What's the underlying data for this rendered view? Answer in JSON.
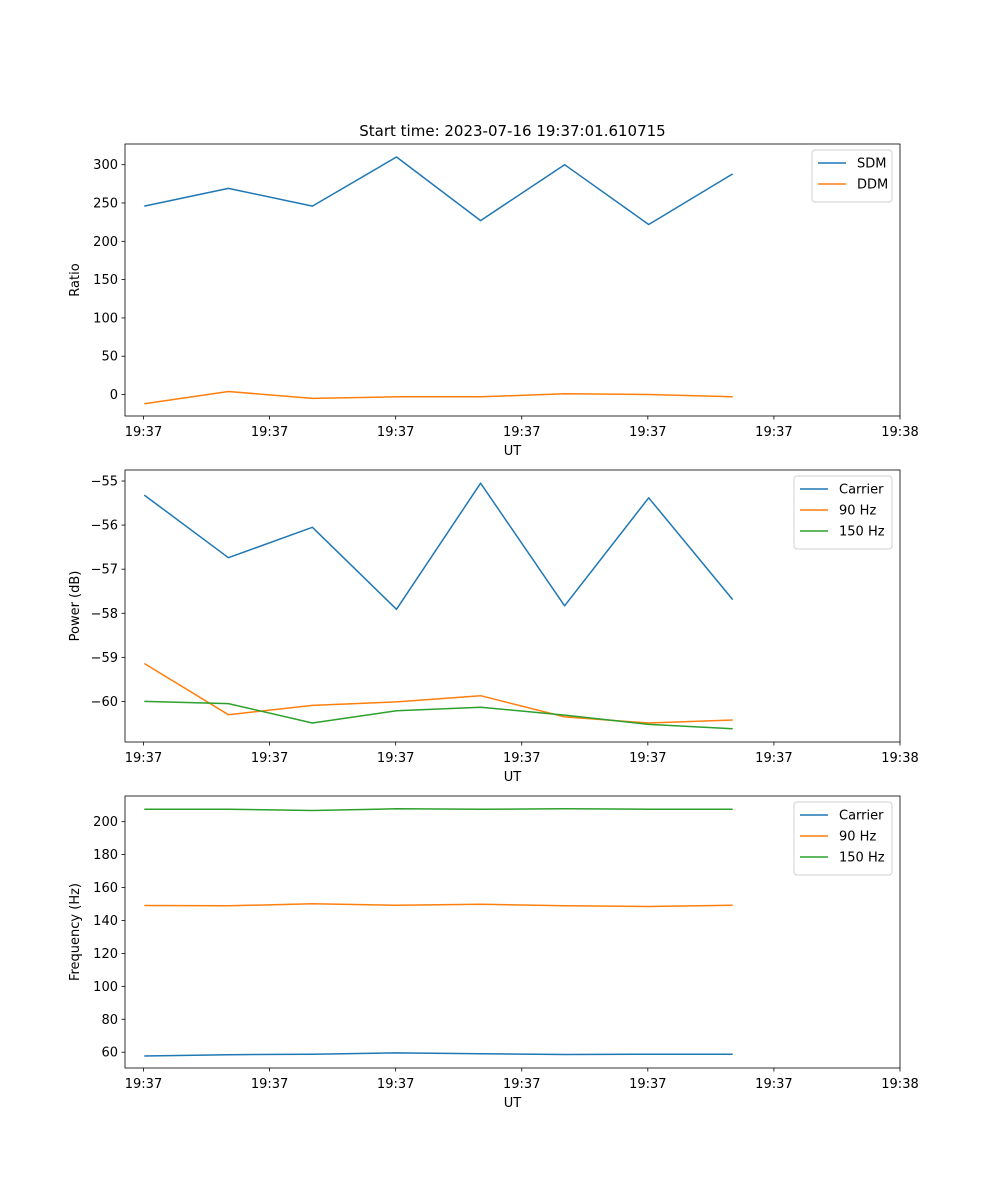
{
  "figure_title": "Start time: 2023-07-16 19:37:01.610715",
  "colors": {
    "blue": "#1f77b4",
    "orange": "#ff7f0e",
    "green": "#2ca02c"
  },
  "chart_data": [
    {
      "type": "line",
      "title": "Start time: 2023-07-16 19:37:01.610715",
      "xlabel": "UT",
      "ylabel": "Ratio",
      "x": [
        1,
        2,
        3,
        4,
        5,
        6,
        7,
        8
      ],
      "xlim": [
        0.77,
        9.99
      ],
      "x_ticks": [
        0.99,
        2.49,
        3.99,
        5.49,
        6.99,
        8.49,
        9.99
      ],
      "x_tick_labels": [
        "19:37",
        "19:37",
        "19:37",
        "19:37",
        "19:37",
        "19:37",
        "19:38"
      ],
      "ylim": [
        -28,
        327
      ],
      "y_ticks": [
        0,
        50,
        100,
        150,
        200,
        250,
        300
      ],
      "y_tick_labels": [
        "0",
        "50",
        "100",
        "150",
        "200",
        "250",
        "300"
      ],
      "legend_position": "top-right",
      "series": [
        {
          "name": "SDM",
          "color": "#1f77b4",
          "values": [
            246,
            269,
            246,
            310,
            227,
            300,
            222,
            288
          ]
        },
        {
          "name": "DDM",
          "color": "#ff7f0e",
          "values": [
            -12,
            4,
            -5,
            -3,
            -3,
            1,
            0,
            -3
          ]
        }
      ]
    },
    {
      "type": "line",
      "title": "",
      "xlabel": "UT",
      "ylabel": "Power (dB)",
      "x": [
        1,
        2,
        3,
        4,
        5,
        6,
        7,
        8
      ],
      "xlim": [
        0.77,
        9.99
      ],
      "x_ticks": [
        0.99,
        2.49,
        3.99,
        5.49,
        6.99,
        8.49,
        9.99
      ],
      "x_tick_labels": [
        "19:37",
        "19:37",
        "19:37",
        "19:37",
        "19:37",
        "19:37",
        "19:38"
      ],
      "ylim": [
        -60.92,
        -54.75
      ],
      "y_ticks": [
        -60,
        -59,
        -58,
        -57,
        -56,
        -55
      ],
      "y_tick_labels": [
        "−60",
        "−59",
        "−58",
        "−57",
        "−56",
        "−55"
      ],
      "legend_position": "top-right",
      "series": [
        {
          "name": "Carrier",
          "color": "#1f77b4",
          "values": [
            -55.32,
            -56.74,
            -56.05,
            -57.91,
            -55.05,
            -57.83,
            -55.38,
            -57.69
          ]
        },
        {
          "name": "90 Hz",
          "color": "#ff7f0e",
          "values": [
            -59.14,
            -60.3,
            -60.09,
            -60.01,
            -59.87,
            -60.35,
            -60.49,
            -60.42
          ]
        },
        {
          "name": "150 Hz",
          "color": "#2ca02c",
          "values": [
            -60.0,
            -60.05,
            -60.49,
            -60.21,
            -60.13,
            -60.31,
            -60.52,
            -60.62
          ]
        }
      ]
    },
    {
      "type": "line",
      "title": "",
      "xlabel": "UT",
      "ylabel": "Frequency (Hz)",
      "x": [
        1,
        2,
        3,
        4,
        5,
        6,
        7,
        8
      ],
      "xlim": [
        0.77,
        9.99
      ],
      "x_ticks": [
        0.99,
        2.49,
        3.99,
        5.49,
        6.99,
        8.49,
        9.99
      ],
      "x_tick_labels": [
        "19:37",
        "19:37",
        "19:37",
        "19:37",
        "19:37",
        "19:37",
        "19:38"
      ],
      "ylim": [
        50.4,
        215.6
      ],
      "y_ticks": [
        60,
        80,
        100,
        120,
        140,
        160,
        180,
        200
      ],
      "y_tick_labels": [
        "60",
        "80",
        "100",
        "120",
        "140",
        "160",
        "180",
        "200"
      ],
      "legend_position": "top-right",
      "series": [
        {
          "name": "Carrier",
          "color": "#1f77b4",
          "values": [
            57.7,
            58.5,
            58.8,
            59.6,
            59.1,
            58.6,
            58.8,
            58.8
          ]
        },
        {
          "name": "90 Hz",
          "color": "#ff7f0e",
          "values": [
            149.1,
            148.9,
            150.1,
            149.3,
            149.8,
            149.0,
            148.5,
            149.3
          ]
        },
        {
          "name": "150 Hz",
          "color": "#2ca02c",
          "values": [
            207.6,
            207.5,
            206.8,
            207.8,
            207.6,
            207.8,
            207.6,
            207.6
          ]
        }
      ]
    }
  ]
}
